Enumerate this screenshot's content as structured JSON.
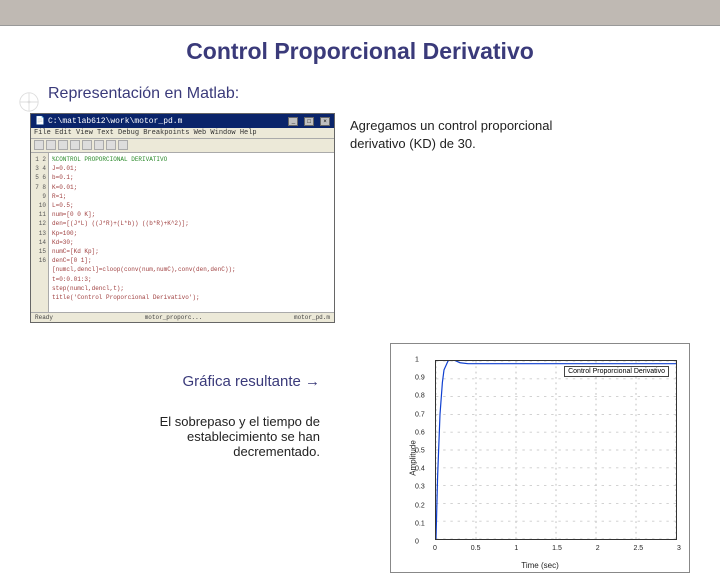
{
  "title": "Control Proporcional Derivativo",
  "subtitle": "Representación en Matlab:",
  "right_text_l1": "Agregamos un control proporcional",
  "right_text_l2": "derivativo (KD) de 30.",
  "lower_label": "Gráfica resultante →",
  "lower_text_l1": "El sobrepaso y el tiempo de",
  "lower_text_l2": "establecimiento se han",
  "lower_text_l3": "decrementado.",
  "editor": {
    "title_path": "C:\\matlab612\\work\\motor_pd.m",
    "menu": "File  Edit  View  Text  Debug  Breakpoints  Web  Window  Help",
    "lines": [
      "1",
      "2",
      "3",
      "4",
      "5",
      "6",
      "7",
      "8",
      "9",
      "10",
      "11",
      "12",
      "13",
      "14",
      "15",
      "16"
    ],
    "code_plain": "%CONTROL PROPORCIONAL DERIVATIVO\nJ=0.01;\nb=0.1;\nK=0.01;\nR=1;\nL=0.5;\nnum=[0 0 K];\nden=[(J*L) ((J*R)+(L*b)) ((b*R)+K^2)];\nKp=100;\nKd=30;\nnumC=[Kd Kp];\ndenC=[0 1];\n[numcl,dencl]=cloop(conv(num,numC),conv(den,denC));\nt=0:0.01:3;\nstep(numcl,dencl,t);\ntitle('Control Proporcional Derivativo');",
    "status_left": "Ready",
    "status_mid": "motor_proporc...",
    "status_right": "motor_pd.m"
  },
  "chart": {
    "type": "line",
    "title_box": "Control Proporcional Derivativo",
    "xlabel": "Time (sec)",
    "ylabel": "Amplitude",
    "xlim": [
      0,
      3
    ],
    "ylim": [
      0,
      1.0
    ],
    "xticks": [
      0,
      0.5,
      1,
      1.5,
      2,
      2.5,
      3
    ],
    "yticks": [
      0,
      0.1,
      0.2,
      0.3,
      0.4,
      0.5,
      0.6,
      0.7,
      0.8,
      0.9,
      1
    ],
    "line_color": "#1040d0",
    "background_color": "#ffffff",
    "grid_color": "#cccccc",
    "line_width": 1.2,
    "x": [
      0,
      0.02,
      0.05,
      0.08,
      0.1,
      0.15,
      0.2,
      0.25,
      0.3,
      0.4,
      0.5,
      0.7,
      1.0,
      1.5,
      2.0,
      2.5,
      3.0
    ],
    "y": [
      0,
      0.35,
      0.7,
      0.88,
      0.95,
      1.0,
      1.01,
      1.0,
      0.99,
      0.985,
      0.985,
      0.985,
      0.985,
      0.985,
      0.985,
      0.985,
      0.985
    ]
  },
  "colors": {
    "title_color": "#3a3a7a",
    "top_bar": "#bfb9b3"
  }
}
